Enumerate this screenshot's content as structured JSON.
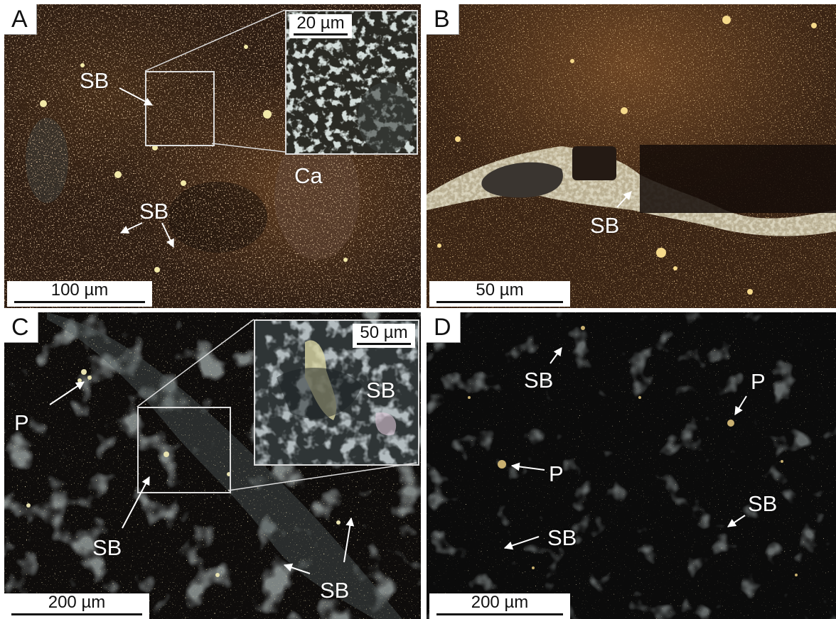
{
  "panels": {
    "a": {
      "letter": "A",
      "labels": {
        "sb1": "SB",
        "sb2": "SB",
        "ca": "Ca"
      },
      "scale_bar": "100 µm",
      "inset_scale": "20 µm",
      "colors": {
        "base": "#2e1d12",
        "warm": "#6b4423",
        "dark": "#140c07"
      }
    },
    "b": {
      "letter": "B",
      "labels": {
        "sb": "SB"
      },
      "scale_bar": "50 µm",
      "colors": {
        "base": "#3a2414",
        "warm": "#7a4e28",
        "vein": "#cfc7a8"
      }
    },
    "c": {
      "letter": "C",
      "labels": {
        "p": "P",
        "sb1": "SB",
        "sb2": "SB",
        "sb_inset": "SB"
      },
      "scale_bar": "200 µm",
      "inset_scale": "50 µm",
      "colors": {
        "base": "#0e0c0b",
        "grey": "#4e5656",
        "bright": "#e8e2b0"
      }
    },
    "d": {
      "letter": "D",
      "labels": {
        "sb_top": "SB",
        "p_right": "P",
        "p_mid": "P",
        "sb_right": "SB",
        "sb_low": "SB"
      },
      "scale_bar": "200 µm",
      "colors": {
        "base": "#0b0b0b",
        "grey": "#3c4444",
        "speck": "#c9b070"
      }
    }
  }
}
